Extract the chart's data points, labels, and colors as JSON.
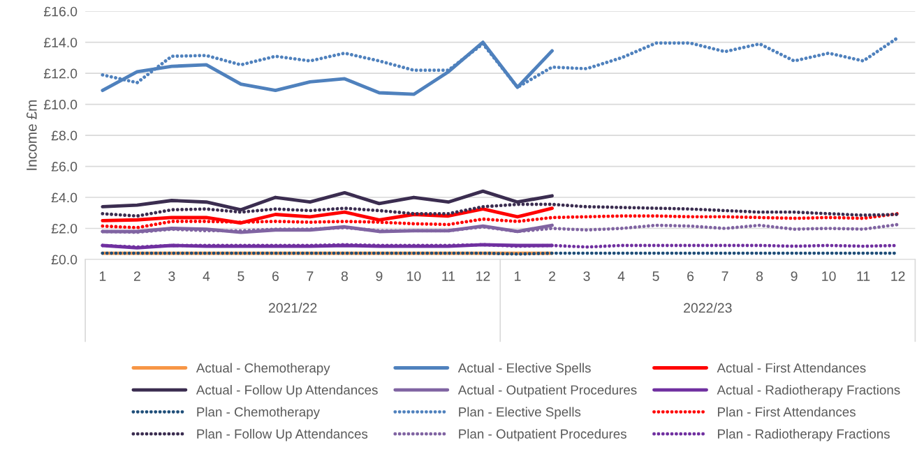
{
  "chart_data": {
    "type": "line",
    "ylabel": "Income £m",
    "categories": [
      "1",
      "2",
      "3",
      "4",
      "5",
      "6",
      "7",
      "8",
      "9",
      "10",
      "11",
      "12",
      "1",
      "2",
      "3",
      "4",
      "5",
      "6",
      "7",
      "8",
      "9",
      "10",
      "11",
      "12"
    ],
    "annotations": [
      "2021/22",
      "2022/23"
    ],
    "ylim": [
      0,
      16
    ],
    "yticks": [
      {
        "value": 0,
        "label": "£0.0"
      },
      {
        "value": 2,
        "label": "£2.0"
      },
      {
        "value": 4,
        "label": "£4.0"
      },
      {
        "value": 6,
        "label": "£6.0"
      },
      {
        "value": 8,
        "label": "£8.0"
      },
      {
        "value": 10,
        "label": "£10.0"
      },
      {
        "value": 12,
        "label": "£12.0"
      },
      {
        "value": 14,
        "label": "£14.0"
      },
      {
        "value": 16,
        "label": "£16.0"
      }
    ],
    "grid": "y",
    "legend": "bottom",
    "series": [
      {
        "name": "Actual - Chemotherapy",
        "color": "#f79646",
        "line_style": "solid",
        "values": [
          0.4,
          0.4,
          0.4,
          0.4,
          0.4,
          0.4,
          0.4,
          0.4,
          0.4,
          0.4,
          0.4,
          0.4,
          0.4,
          0.4,
          null,
          null,
          null,
          null,
          null,
          null,
          null,
          null,
          null,
          null
        ]
      },
      {
        "name": "Actual - Elective Spells",
        "color": "#4f81bd",
        "line_style": "solid",
        "values": [
          10.9,
          12.1,
          12.45,
          12.55,
          11.3,
          10.9,
          11.45,
          11.65,
          10.75,
          10.65,
          12.1,
          14.0,
          11.1,
          13.45,
          null,
          null,
          null,
          null,
          null,
          null,
          null,
          null,
          null,
          null
        ]
      },
      {
        "name": "Actual - First Attendances",
        "color": "#ff0000",
        "line_style": "solid",
        "values": [
          2.5,
          2.55,
          2.7,
          2.7,
          2.35,
          2.9,
          2.75,
          3.05,
          2.55,
          2.9,
          2.8,
          3.25,
          2.75,
          3.3,
          null,
          null,
          null,
          null,
          null,
          null,
          null,
          null,
          null,
          null
        ]
      },
      {
        "name": "Actual - Follow Up Attendances",
        "color": "#3b2d50",
        "line_style": "solid",
        "values": [
          3.4,
          3.5,
          3.8,
          3.7,
          3.2,
          4.0,
          3.7,
          4.3,
          3.6,
          4.0,
          3.7,
          4.4,
          3.7,
          4.1,
          null,
          null,
          null,
          null,
          null,
          null,
          null,
          null,
          null,
          null
        ]
      },
      {
        "name": "Actual - Outpatient Procedures",
        "color": "#8064a2",
        "line_style": "solid",
        "values": [
          1.8,
          1.8,
          2.0,
          1.95,
          1.75,
          1.9,
          1.9,
          2.1,
          1.8,
          1.85,
          1.85,
          2.15,
          1.8,
          2.2,
          null,
          null,
          null,
          null,
          null,
          null,
          null,
          null,
          null,
          null
        ]
      },
      {
        "name": "Actual - Radiotherapy Fractions",
        "color": "#7030a0",
        "line_style": "solid",
        "values": [
          0.9,
          0.75,
          0.9,
          0.85,
          0.85,
          0.85,
          0.85,
          0.9,
          0.85,
          0.85,
          0.85,
          0.95,
          0.9,
          0.9,
          null,
          null,
          null,
          null,
          null,
          null,
          null,
          null,
          null,
          null
        ]
      },
      {
        "name": "Plan - Chemotherapy",
        "color": "#1f4e79",
        "line_style": "dotted",
        "values": [
          0.4,
          0.4,
          0.4,
          0.4,
          0.4,
          0.4,
          0.4,
          0.4,
          0.4,
          0.4,
          0.4,
          0.4,
          0.35,
          0.4,
          0.4,
          0.4,
          0.4,
          0.4,
          0.4,
          0.4,
          0.4,
          0.4,
          0.4,
          0.4
        ]
      },
      {
        "name": "Plan - Elective Spells",
        "color": "#4f81bd",
        "line_style": "dotted",
        "values": [
          11.9,
          11.4,
          13.1,
          13.15,
          12.55,
          13.1,
          12.8,
          13.3,
          12.8,
          12.2,
          12.2,
          13.9,
          11.1,
          12.4,
          12.3,
          13.0,
          13.95,
          13.95,
          13.4,
          13.9,
          12.8,
          13.3,
          12.8,
          14.3
        ]
      },
      {
        "name": "Plan - First Attendances",
        "color": "#ff0000",
        "line_style": "dotted",
        "values": [
          2.15,
          2.05,
          2.45,
          2.45,
          2.4,
          2.45,
          2.4,
          2.45,
          2.4,
          2.3,
          2.25,
          2.6,
          2.45,
          2.7,
          2.75,
          2.8,
          2.8,
          2.75,
          2.75,
          2.7,
          2.65,
          2.7,
          2.65,
          2.95
        ]
      },
      {
        "name": "Plan - Follow Up Attendances",
        "color": "#3b2d50",
        "line_style": "dotted",
        "values": [
          2.95,
          2.8,
          3.2,
          3.25,
          3.05,
          3.25,
          3.15,
          3.3,
          3.15,
          2.95,
          2.95,
          3.4,
          3.55,
          3.55,
          3.4,
          3.35,
          3.3,
          3.25,
          3.15,
          3.05,
          3.05,
          2.95,
          2.85,
          2.9
        ]
      },
      {
        "name": "Plan - Outpatient Procedures",
        "color": "#8064a2",
        "line_style": "dotted",
        "values": [
          1.8,
          1.75,
          1.95,
          1.85,
          1.85,
          1.95,
          1.95,
          2.05,
          1.85,
          1.85,
          1.85,
          2.1,
          1.8,
          2.0,
          1.9,
          2.0,
          2.2,
          2.15,
          2.0,
          2.2,
          1.95,
          2.0,
          1.95,
          2.25
        ]
      },
      {
        "name": "Plan - Radiotherapy Fractions",
        "color": "#7030a0",
        "line_style": "dotted",
        "values": [
          0.9,
          0.8,
          0.9,
          0.9,
          0.9,
          0.9,
          0.9,
          0.95,
          0.9,
          0.9,
          0.9,
          0.95,
          0.85,
          0.9,
          0.8,
          0.9,
          0.9,
          0.9,
          0.9,
          0.9,
          0.85,
          0.9,
          0.85,
          0.9
        ]
      }
    ]
  }
}
